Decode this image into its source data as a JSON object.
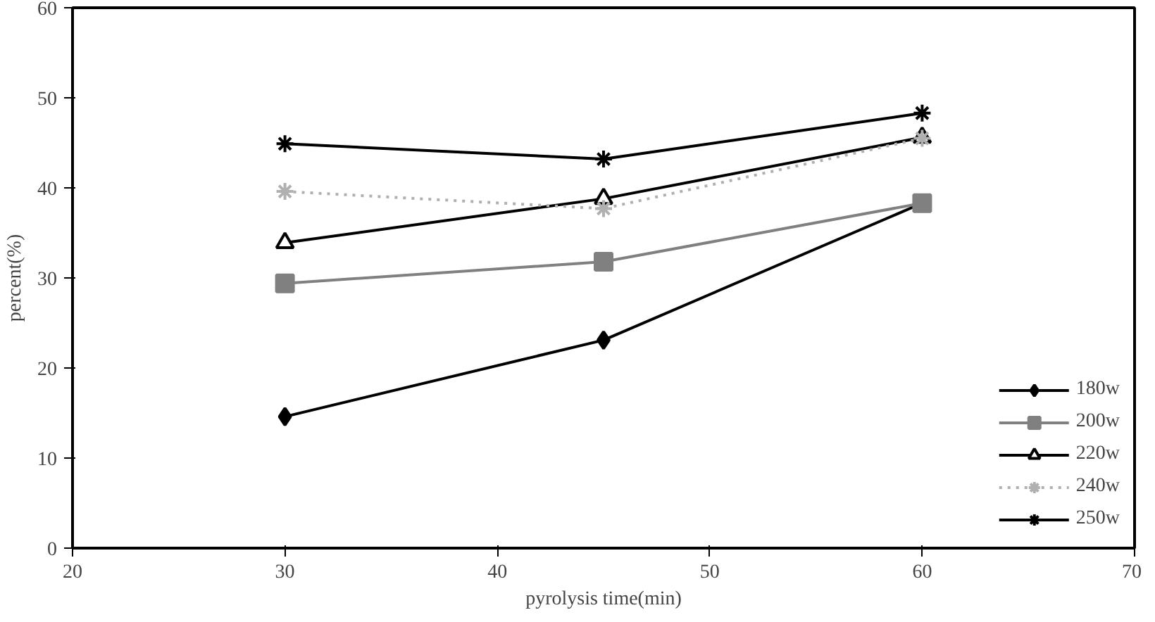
{
  "chart_data": {
    "type": "line",
    "xlabel": "pyrolysis time(min)",
    "ylabel": "percent(%)",
    "x": [
      30,
      45,
      60
    ],
    "xlim": [
      20,
      70
    ],
    "xticks": [
      20,
      30,
      40,
      50,
      60,
      70
    ],
    "ylim": [
      0,
      60
    ],
    "yticks": [
      0,
      10,
      20,
      30,
      40,
      50,
      60
    ],
    "grid": false,
    "legend": "bottom right",
    "series": [
      {
        "name": "180w",
        "color": "#000000",
        "marker": "diamond",
        "line_style": "solid",
        "values": [
          14.6,
          23.1,
          38.3
        ]
      },
      {
        "name": "200w",
        "color": "#808080",
        "marker": "square",
        "line_style": "solid",
        "values": [
          29.4,
          31.8,
          38.3
        ]
      },
      {
        "name": "220w",
        "color": "#000000",
        "marker": "triangle",
        "line_style": "solid",
        "values": [
          33.9,
          38.8,
          45.6
        ]
      },
      {
        "name": "240w",
        "color": "#b0b0b0",
        "marker": "cross",
        "line_style": "dotted",
        "values": [
          39.6,
          37.7,
          45.5
        ]
      },
      {
        "name": "250w",
        "color": "#000000",
        "marker": "cross",
        "line_style": "solid",
        "values": [
          44.9,
          43.2,
          48.3
        ]
      }
    ]
  }
}
